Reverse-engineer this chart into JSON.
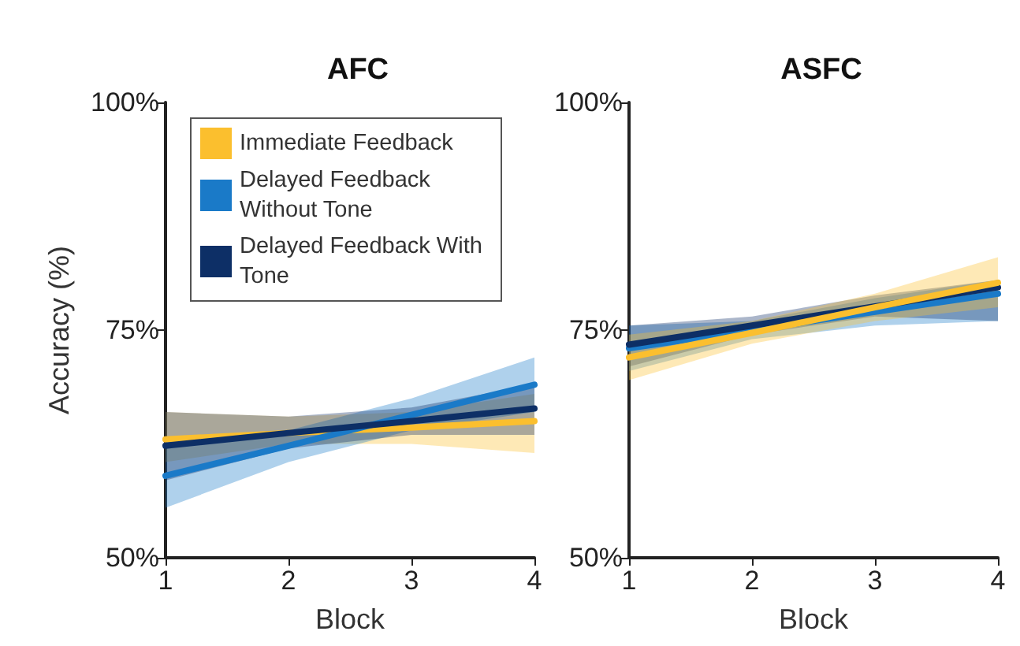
{
  "chart_data": [
    {
      "type": "line",
      "title": "AFC",
      "xlabel": "Block",
      "ylabel": "Accuracy (%)",
      "x": [
        1,
        2,
        3,
        4
      ],
      "xlim": [
        1,
        4
      ],
      "xticks": [
        1,
        2,
        3,
        4
      ],
      "ylim": [
        50,
        100
      ],
      "yticks": [
        {
          "value": 50,
          "label": "50%"
        },
        {
          "value": 75,
          "label": "75%"
        },
        {
          "value": 100,
          "label": "100%"
        }
      ],
      "grid": false,
      "legend": "top",
      "marker": "none",
      "line_style": "solid",
      "series": [
        {
          "name": "Immediate Feedback",
          "color": "#fbbf2e",
          "values": [
            63,
            63.7,
            64.3,
            65
          ],
          "lower": [
            60.5,
            62.5,
            62.5,
            61.5
          ],
          "upper": [
            66,
            65.5,
            66,
            68
          ]
        },
        {
          "name": "Delayed Feedback Without Tone",
          "color": "#1a7ac8",
          "values": [
            59,
            62.3,
            65.7,
            69
          ],
          "lower": [
            55.5,
            60.5,
            64,
            66
          ],
          "upper": [
            63,
            64,
            67.5,
            72
          ]
        },
        {
          "name": "Delayed Feedback With Tone",
          "color": "#0d2f66",
          "values": [
            62.3,
            63.7,
            65,
            66.4
          ],
          "lower": [
            58.5,
            62,
            63.5,
            63.5
          ],
          "upper": [
            66,
            65.5,
            66.5,
            69
          ]
        }
      ]
    },
    {
      "type": "line",
      "title": "ASFC",
      "xlabel": "Block",
      "x": [
        1,
        2,
        3,
        4
      ],
      "xlim": [
        1,
        4
      ],
      "xticks": [
        1,
        2,
        3,
        4
      ],
      "ylim": [
        50,
        100
      ],
      "yticks": [
        {
          "value": 50,
          "label": "50%"
        },
        {
          "value": 75,
          "label": "75%"
        },
        {
          "value": 100,
          "label": "100%"
        }
      ],
      "grid": false,
      "marker": "none",
      "line_style": "solid",
      "series": [
        {
          "color": "#1a7ac8",
          "values": [
            73,
            75,
            77,
            79
          ],
          "lower": [
            70.5,
            74,
            75.5,
            76
          ],
          "upper": [
            75.5,
            76,
            78.5,
            80.5
          ]
        },
        {
          "color": "#0d2f66",
          "values": [
            73.4,
            75.5,
            77.6,
            79.7
          ],
          "lower": [
            71,
            74.5,
            76.5,
            76
          ],
          "upper": [
            75.5,
            76.5,
            78.8,
            80.5
          ]
        },
        {
          "color": "#fbbf2e",
          "values": [
            72,
            74.7,
            77.5,
            80.2
          ],
          "lower": [
            69.5,
            73.5,
            76,
            77.5
          ],
          "upper": [
            74.5,
            76,
            79,
            83
          ]
        }
      ]
    }
  ]
}
